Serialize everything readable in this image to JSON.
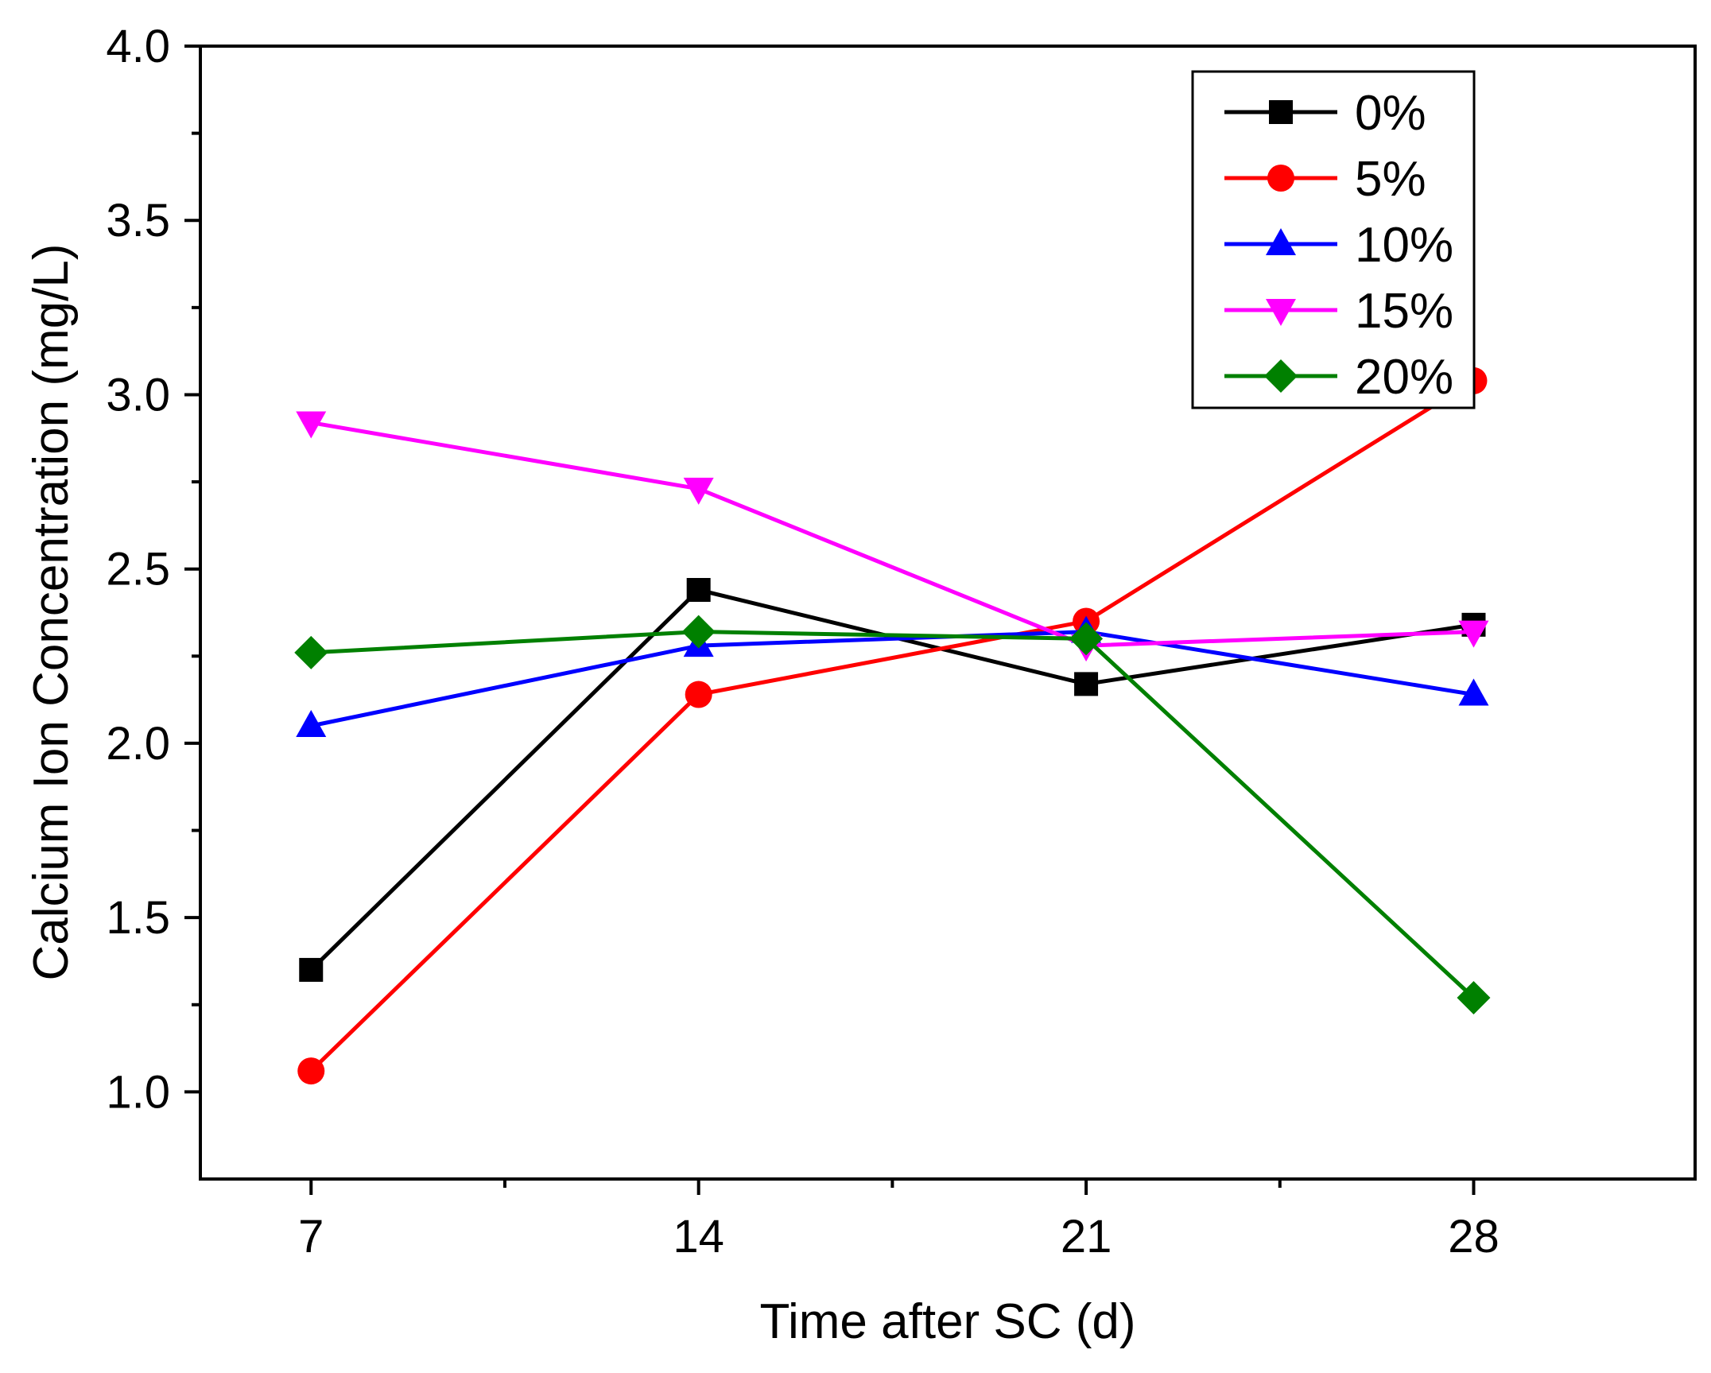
{
  "chart_data": {
    "type": "line",
    "title": "",
    "xlabel": "Time after SC (d)",
    "ylabel": "Calcium Ion Concentration (mg/L)",
    "x": [
      7,
      14,
      21,
      28
    ],
    "x_tick_labels": [
      "7",
      "14",
      "21",
      "28"
    ],
    "xlim": [
      5,
      32
    ],
    "ylim": [
      0.75,
      4.0
    ],
    "y_ticks": [
      1.0,
      1.5,
      2.0,
      2.5,
      3.0,
      3.5,
      4.0
    ],
    "y_tick_labels": [
      "1.0",
      "1.5",
      "2.0",
      "2.5",
      "3.0",
      "3.5",
      "4.0"
    ],
    "grid": false,
    "legend_position": "top-right",
    "series": [
      {
        "name": "0%",
        "color": "#000000",
        "marker": "square",
        "values": [
          1.35,
          2.44,
          2.17,
          2.34
        ]
      },
      {
        "name": "5%",
        "color": "#ff0000",
        "marker": "circle",
        "values": [
          1.06,
          2.14,
          2.35,
          3.04
        ]
      },
      {
        "name": "10%",
        "color": "#0000ff",
        "marker": "triangle-up",
        "values": [
          2.05,
          2.28,
          2.32,
          2.14
        ]
      },
      {
        "name": "15%",
        "color": "#ff00ff",
        "marker": "triangle-down",
        "values": [
          2.92,
          2.73,
          2.28,
          2.32
        ]
      },
      {
        "name": "20%",
        "color": "#008000",
        "marker": "diamond",
        "values": [
          2.26,
          2.32,
          2.3,
          1.27
        ]
      }
    ]
  }
}
